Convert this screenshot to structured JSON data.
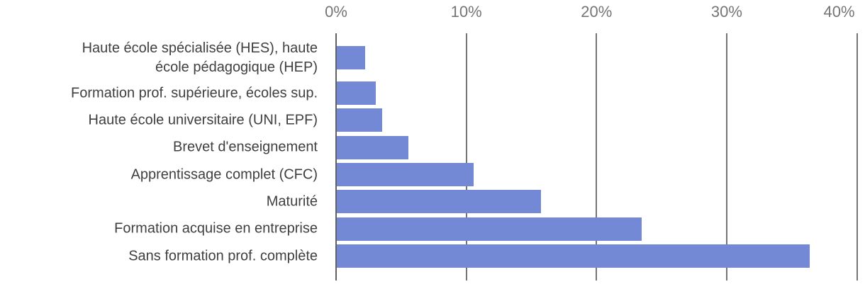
{
  "chart_data": {
    "type": "bar",
    "orientation": "horizontal",
    "title": "",
    "xlabel": "",
    "ylabel": "",
    "categories": [
      "Haute école spécialisée (HES), haute\nécole pédagogique (HEP)",
      "Formation prof. supérieure, écoles sup.",
      "Haute école universitaire (UNI, EPF)",
      "Brevet d'enseignement",
      "Apprentissage complet (CFC)",
      "Maturité",
      "Formation acquise en entreprise",
      "Sans formation prof. complète"
    ],
    "values": [
      2.2,
      3.0,
      3.5,
      5.5,
      10.5,
      15.7,
      23.4,
      36.3
    ],
    "xlim": [
      0,
      40
    ],
    "xticks": [
      0,
      10,
      20,
      30,
      40
    ],
    "xtick_labels": [
      "0%",
      "10%",
      "20%",
      "30%",
      "40%"
    ],
    "grid": "vertical-gridlines-on",
    "legend": "none",
    "bar_color": "#7389d6",
    "axis_line_color": "#616161",
    "gridline_color": "#757575",
    "tick_label_color": "#757575",
    "category_label_color": "#3f3f3f",
    "background_color": "#ffffff"
  }
}
